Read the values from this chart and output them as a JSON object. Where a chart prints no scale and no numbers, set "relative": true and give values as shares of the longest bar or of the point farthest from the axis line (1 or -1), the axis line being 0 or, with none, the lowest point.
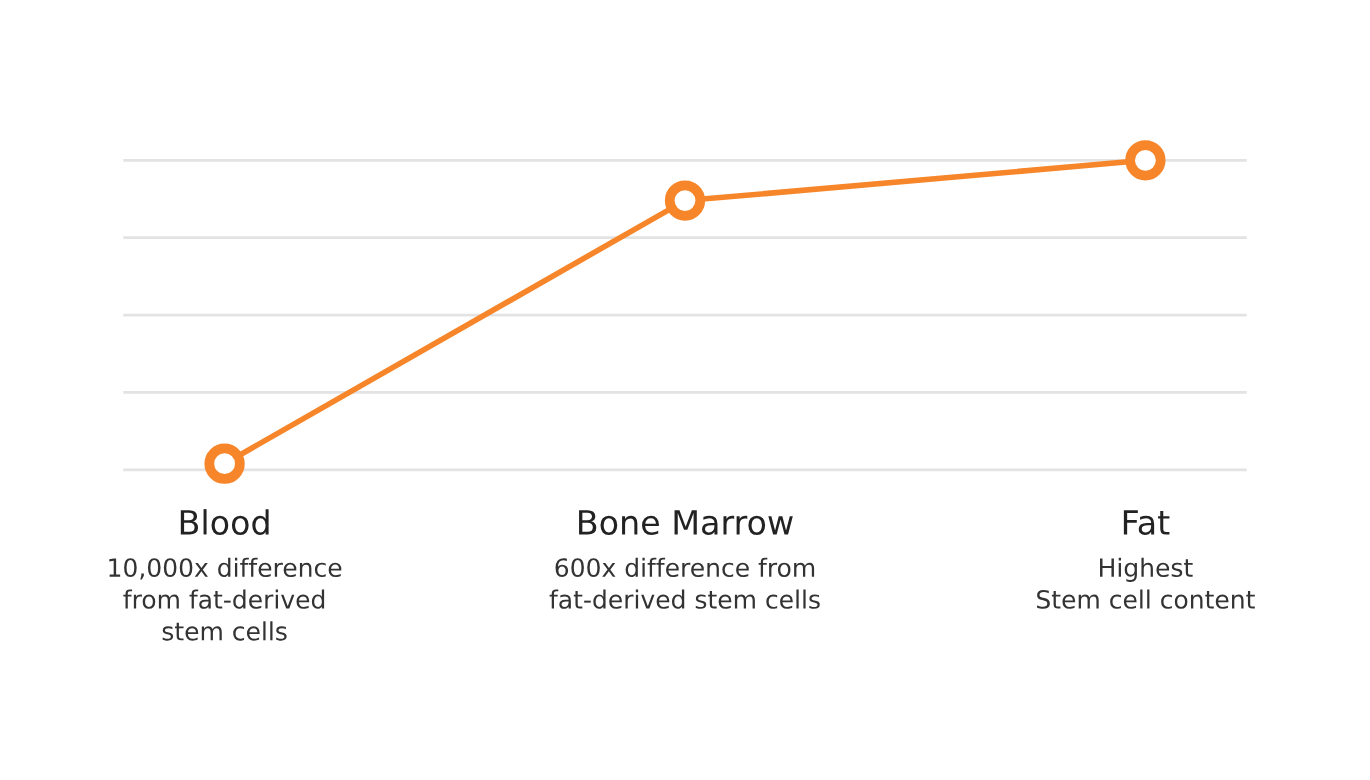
{
  "chart_data": {
    "type": "line",
    "relative": true,
    "categories": [
      "Blood",
      "Bone Marrow",
      "Fat"
    ],
    "series": [
      {
        "color": "#f7862a",
        "values": [
          0.02,
          0.87,
          1
        ]
      }
    ],
    "marker": "circle",
    "line_style": "solid",
    "grid": "y",
    "legend": false,
    "annotations": [
      "10,000x difference\nfrom fat-derived\nstem cells",
      "600x difference from\nfat-derived stem cells",
      "Highest\nStem cell content"
    ]
  }
}
